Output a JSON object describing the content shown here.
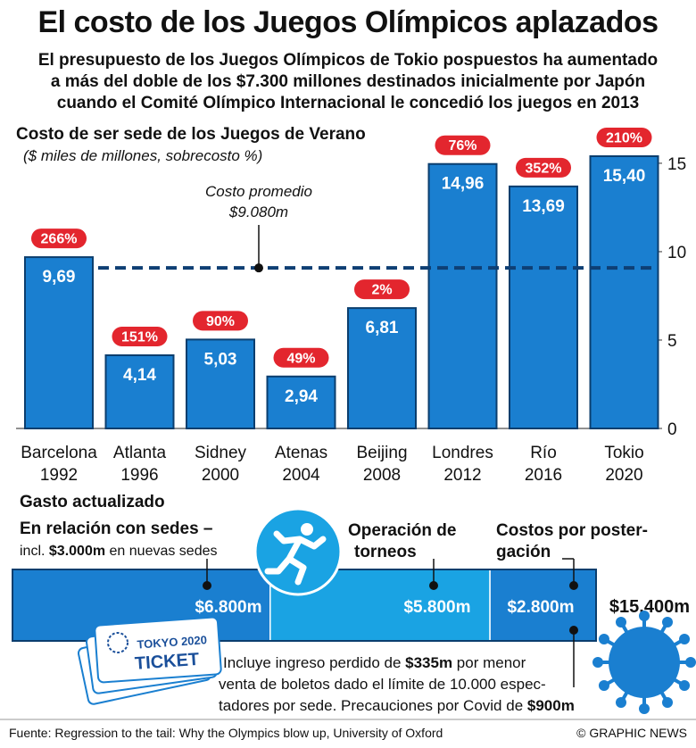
{
  "header": {
    "title": "El costo de los Juegos Olímpicos aplazados",
    "subtitle_lines": [
      "El presupuesto de los Juegos Olímpicos de Tokio pospuestos ha aumentado",
      "a más del doble de los $7.300 millones destinados inicialmente por Japón",
      "cuando el Comité Olímpico Internacional le concedió los juegos en 2013"
    ]
  },
  "colors": {
    "bar": "#1a7fd0",
    "bar_border": "#0b3e6e",
    "pill": "#e3262e",
    "dash": "#0e3f74",
    "seg1": "#1a7fd0",
    "seg2": "#1aa3e3",
    "seg3": "#1a7fd0"
  },
  "chart_data": [
    {
      "type": "bar",
      "title": "Costo de ser sede de los Juegos de Verano",
      "subtitle": "($ miles de millones, sobrecosto %)",
      "categories": [
        [
          "Barcelona",
          "1992"
        ],
        [
          "Atlanta",
          "1996"
        ],
        [
          "Sidney",
          "2000"
        ],
        [
          "Atenas",
          "2004"
        ],
        [
          "Beijing",
          "2008"
        ],
        [
          "Londres",
          "2012"
        ],
        [
          "Río",
          "2016"
        ],
        [
          "Tokio",
          "2020"
        ]
      ],
      "values": [
        9.69,
        4.14,
        5.03,
        2.94,
        6.81,
        14.96,
        13.69,
        15.4
      ],
      "value_labels": [
        "9,69",
        "4,14",
        "5,03",
        "2,94",
        "6,81",
        "14,96",
        "13,69",
        "15,40"
      ],
      "overrun_labels": [
        "266%",
        "151%",
        "90%",
        "49%",
        "2%",
        "76%",
        "352%",
        "210%"
      ],
      "average": {
        "value": 9.08,
        "label_lines": [
          "Costo promedio",
          "$9.080m"
        ]
      },
      "ylim": [
        0,
        15.4
      ],
      "yticks": [
        0,
        5,
        10,
        15
      ],
      "ytick_labels": [
        "0",
        "5",
        "10",
        "15"
      ],
      "legend": "none",
      "grid": false
    },
    {
      "type": "bar",
      "stacked": true,
      "orientation": "horizontal",
      "title": "Gasto actualizado",
      "segments": [
        {
          "name": "En relación con sedes",
          "label_lines": [
            "En relación con sedes –"
          ],
          "note_parts": [
            "incl. ",
            "$3.000m",
            " en nuevas sedes"
          ],
          "value": 6800,
          "value_label": "$6.800m"
        },
        {
          "name": "Operación de torneos",
          "label_lines": [
            "Operación de",
            "torneos"
          ],
          "value": 5800,
          "value_label": "$5.800m"
        },
        {
          "name": "Costos por postergación",
          "label_lines": [
            "Costos por poster-",
            "gación"
          ],
          "value": 2800,
          "value_label": "$2.800m"
        }
      ],
      "total_label": "$15.400m",
      "note_lines": [
        [
          [
            "Incluye ingreso perdido de ",
            false
          ],
          [
            "$335m",
            true
          ],
          [
            " por menor",
            false
          ]
        ],
        [
          [
            "venta de boletos dado el límite de 10.000 espec-",
            false
          ]
        ],
        [
          [
            "tadores por sede. Precauciones por Covid de ",
            false
          ],
          [
            "$900m",
            true
          ]
        ]
      ]
    }
  ],
  "ticket": {
    "line1": "TOKYO 2020",
    "line2": "TICKET"
  },
  "icons": [
    "running-athlete-icon",
    "olympic-emblem-icon",
    "coronavirus-icon"
  ],
  "footer": {
    "source": "Fuente: Regression to the tail: Why the Olympics blow up, University of Oxford",
    "credit": "© GRAPHIC NEWS"
  }
}
